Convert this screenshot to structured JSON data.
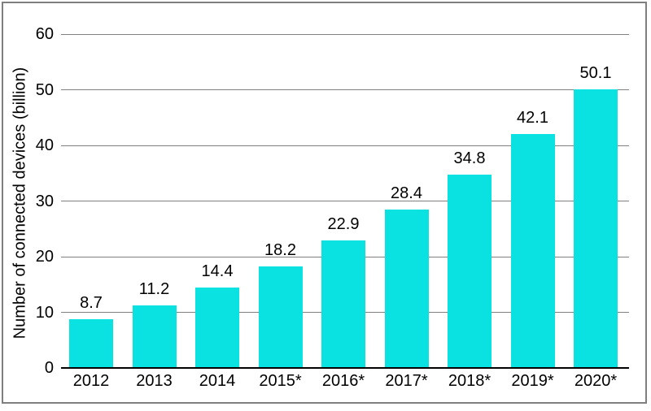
{
  "frame": {
    "border_color": "#7f7f7f",
    "background_color": "#ffffff"
  },
  "chart_data": {
    "type": "bar",
    "title": "",
    "xlabel": "",
    "ylabel": "Number of connected devices (billion)",
    "categories": [
      "2012",
      "2013",
      "2014",
      "2015*",
      "2016*",
      "2017*",
      "2018*",
      "2019*",
      "2020*"
    ],
    "values": [
      8.7,
      11.2,
      14.4,
      18.2,
      22.9,
      28.4,
      34.8,
      42.1,
      50.1
    ],
    "data_labels": [
      "8.7",
      "11.2",
      "14.4",
      "18.2",
      "22.9",
      "28.4",
      "34.8",
      "42.1",
      "50.1"
    ],
    "yticks": [
      0,
      10,
      20,
      30,
      40,
      50,
      60
    ],
    "ytick_labels": [
      "0",
      "10",
      "20",
      "30",
      "40",
      "50",
      "60"
    ],
    "ylim": [
      0,
      60
    ],
    "grid": true,
    "legend_position": "none",
    "bar_color": "#0ae1e1",
    "gridline_color": "#808080",
    "axis_color": "#000000",
    "text_color": "#000000"
  }
}
